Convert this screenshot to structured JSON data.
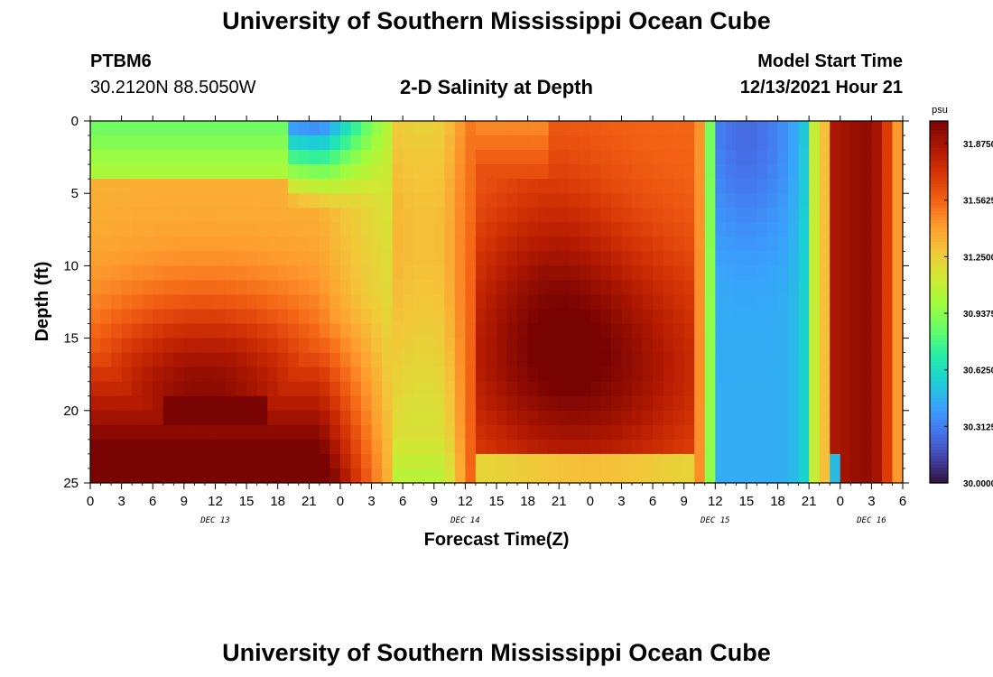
{
  "page": {
    "title": "University of Southern Mississippi Ocean Cube",
    "footer_title": "University of Southern Mississippi Ocean Cube",
    "station": "PTBM6",
    "coords": "30.2120N  88.5050W",
    "subtitle": "2-D Salinity at Depth",
    "model_label": "Model Start Time",
    "model_time": "12/13/2021 Hour 21"
  },
  "chart_data": {
    "type": "heatmap",
    "title": "2-D Salinity at Depth",
    "xlabel": "Forecast Time(Z)",
    "ylabel": "Depth (ft)",
    "x_tick_labels": [
      "0",
      "3",
      "6",
      "9",
      "12",
      "15",
      "18",
      "21",
      "0",
      "3",
      "6",
      "9",
      "12",
      "15",
      "18",
      "21",
      "0",
      "3",
      "6",
      "9",
      "12",
      "15",
      "18",
      "21",
      "0",
      "3",
      "6"
    ],
    "x_range_hours": [
      0,
      78
    ],
    "day_labels": [
      {
        "label": "DEC 13",
        "hour": 12
      },
      {
        "label": "DEC 14",
        "hour": 36
      },
      {
        "label": "DEC 15",
        "hour": 60
      },
      {
        "label": "DEC 16",
        "hour": 75
      }
    ],
    "y_ticks": [
      0,
      5,
      10,
      15,
      20,
      25
    ],
    "ylim": [
      0,
      25
    ],
    "colorbar": {
      "unit": "psu",
      "min": 30.0,
      "max": 32.0,
      "tick_labels": [
        "31.8750",
        "31.5625",
        "31.2500",
        "30.9375",
        "30.6250",
        "30.3125",
        "30.0000"
      ],
      "tick_values": [
        31.875,
        31.5625,
        31.25,
        30.9375,
        30.625,
        30.3125,
        30.0
      ],
      "colormap": "turbo"
    },
    "grid_resolution": {
      "time_steps": 78,
      "depth_levels": 25
    },
    "salinity_features": [
      {
        "desc": "surface fresh layer",
        "hours": [
          0,
          24
        ],
        "depth_ft": [
          0,
          5
        ],
        "psu": 30.9
      },
      {
        "desc": "near-surface minimum",
        "hours": [
          20,
          26
        ],
        "depth_ft": [
          0,
          2
        ],
        "psu": 30.25
      },
      {
        "desc": "saline core",
        "hours": [
          6,
          22
        ],
        "depth_ft": [
          15,
          22
        ],
        "psu": 31.98
      },
      {
        "desc": "maximum patch",
        "hours": [
          8,
          17
        ],
        "depth_ft": [
          19.5,
          21.5
        ],
        "psu": 32.0
      },
      {
        "desc": "mid-period saline core",
        "hours": [
          36,
          58
        ],
        "depth_ft": [
          12,
          22
        ],
        "psu": 31.9
      },
      {
        "desc": "fresh front",
        "hours": [
          60,
          70
        ],
        "depth_ft": [
          0,
          25
        ],
        "psu": 30.4
      },
      {
        "desc": "late saline column",
        "hours": [
          71,
          78
        ],
        "depth_ft": [
          0,
          25
        ],
        "psu": 31.9
      }
    ]
  }
}
